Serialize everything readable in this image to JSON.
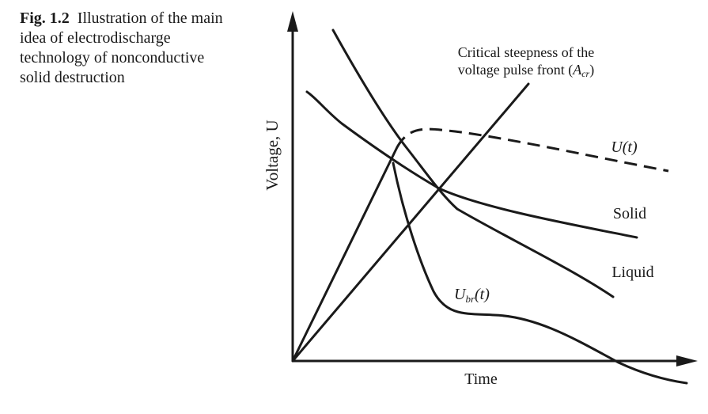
{
  "caption": {
    "label": "Fig. 1.2",
    "text": "Illustration of the main idea of electrodischarge technology of nonconductive solid destruction"
  },
  "axes": {
    "x_label": "Time",
    "y_label": "Voltage, U"
  },
  "annotations": {
    "critical_line_1": "Critical steepness of the",
    "critical_line_2_prefix": "voltage pulse front (",
    "critical_symbol": "A",
    "critical_sub": "cr",
    "critical_suffix": ")"
  },
  "curve_labels": {
    "u_t": "U(t)",
    "solid": "Solid",
    "liquid": "Liquid",
    "ubr_main": "U",
    "ubr_sub": "br",
    "ubr_arg": "(t)"
  },
  "colors": {
    "ink": "#1a1a1a",
    "background": "#ffffff"
  }
}
